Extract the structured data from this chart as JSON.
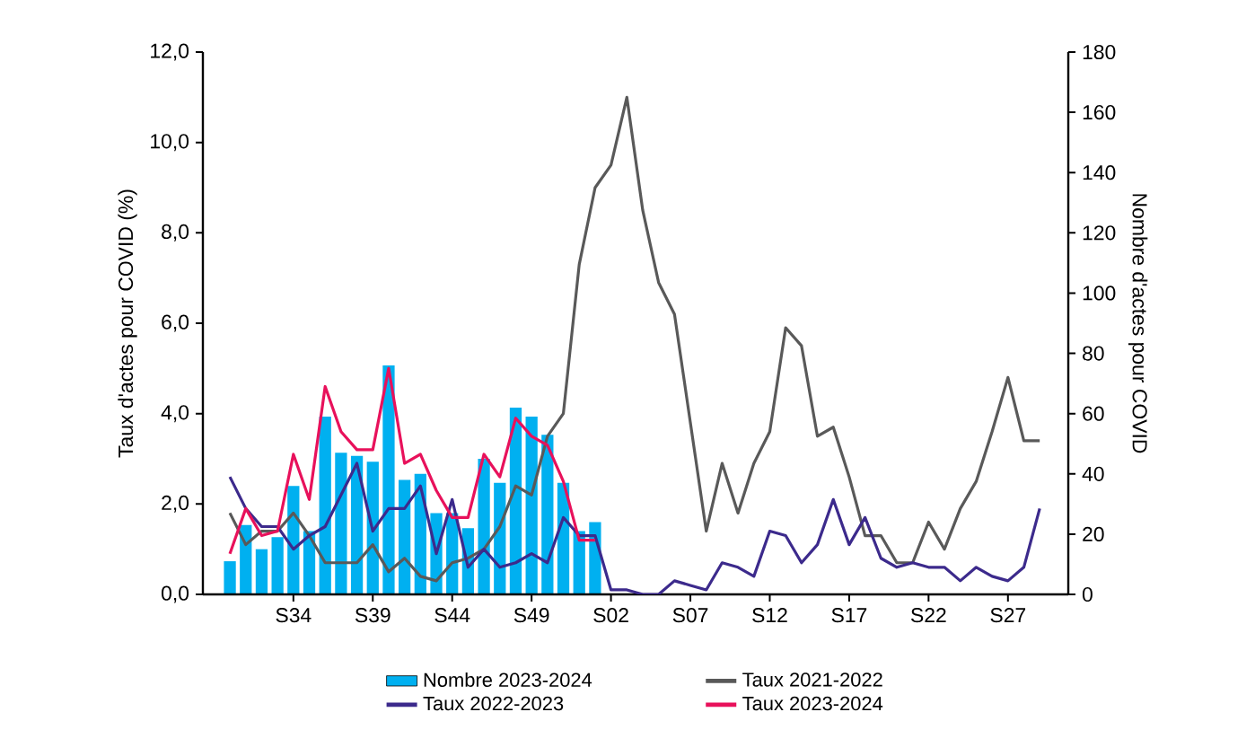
{
  "chart_data": {
    "type": "line",
    "ylabel": "Taux d'actes pour COVID (%)",
    "y2label": "Nombre d'actes pour COVID",
    "categories": [
      null,
      null,
      null,
      null,
      "S34",
      null,
      null,
      null,
      null,
      "S39",
      null,
      null,
      null,
      null,
      "S44",
      null,
      null,
      null,
      null,
      "S49",
      null,
      null,
      null,
      null,
      "S02",
      null,
      null,
      null,
      null,
      "S07",
      null,
      null,
      null,
      null,
      "S12",
      null,
      null,
      null,
      null,
      "S17",
      null,
      null,
      null,
      null,
      "S22",
      null,
      null,
      null,
      null,
      "S27",
      null,
      null
    ],
    "ylim": [
      0,
      12
    ],
    "yticks": [
      {
        "value": 0,
        "label": "0,0"
      },
      {
        "value": 2,
        "label": "2,0"
      },
      {
        "value": 4,
        "label": "4,0"
      },
      {
        "value": 6,
        "label": "6,0"
      },
      {
        "value": 8,
        "label": "8,0"
      },
      {
        "value": 10,
        "label": "10,0"
      },
      {
        "value": 12,
        "label": "12,0"
      }
    ],
    "y2lim": [
      0,
      180
    ],
    "y2ticks": [
      0,
      20,
      40,
      60,
      80,
      100,
      120,
      140,
      160,
      180
    ],
    "legend": "bottom",
    "series": [
      {
        "name": "Nombre 2023-2024",
        "type": "bar",
        "axis": "y2",
        "color": "#00b0f0",
        "values": [
          11,
          23,
          15,
          19,
          36,
          21,
          59,
          47,
          46,
          44,
          76,
          38,
          40,
          27,
          27,
          22,
          45,
          37,
          62,
          59,
          53,
          37,
          21,
          24,
          null,
          null,
          null,
          null,
          null,
          null,
          null,
          null,
          null,
          null,
          null,
          null,
          null,
          null,
          null,
          null,
          null,
          null,
          null,
          null,
          null,
          null,
          null,
          null,
          null,
          null,
          null,
          null
        ]
      },
      {
        "name": "Taux 2021-2022",
        "color": "#595959",
        "values": [
          1.8,
          1.1,
          1.4,
          1.4,
          1.8,
          1.3,
          0.7,
          0.7,
          0.7,
          1.1,
          0.5,
          0.8,
          0.4,
          0.3,
          0.7,
          0.8,
          1.0,
          1.5,
          2.4,
          2.2,
          3.5,
          4.0,
          7.3,
          9.0,
          9.5,
          11.0,
          8.5,
          6.9,
          6.2,
          3.8,
          1.4,
          2.9,
          1.8,
          2.9,
          3.6,
          5.9,
          5.5,
          3.5,
          3.7,
          2.6,
          1.3,
          1.3,
          0.7,
          0.7,
          1.6,
          1.0,
          1.9,
          2.5,
          3.6,
          4.8,
          3.4,
          3.4
        ]
      },
      {
        "name": "Taux 2022-2023",
        "color": "#3c2a8c",
        "values": [
          2.6,
          1.9,
          1.5,
          1.5,
          1.0,
          1.3,
          1.5,
          2.2,
          2.9,
          1.4,
          1.9,
          1.9,
          2.4,
          0.9,
          2.1,
          0.6,
          1.0,
          0.6,
          0.7,
          0.9,
          0.7,
          1.7,
          1.3,
          1.3,
          0.1,
          0.1,
          0.0,
          0.0,
          0.3,
          0.2,
          0.1,
          0.7,
          0.6,
          0.4,
          1.4,
          1.3,
          0.7,
          1.1,
          2.1,
          1.1,
          1.7,
          0.8,
          0.6,
          0.7,
          0.6,
          0.6,
          0.3,
          0.6,
          0.4,
          0.3,
          0.6,
          1.9
        ]
      },
      {
        "name": "Taux 2023-2024",
        "color": "#e8115b",
        "values": [
          0.9,
          1.9,
          1.3,
          1.4,
          3.1,
          2.1,
          4.6,
          3.6,
          3.2,
          3.2,
          5.0,
          2.9,
          3.1,
          2.3,
          1.7,
          1.7,
          3.1,
          2.6,
          3.9,
          3.5,
          3.3,
          2.5,
          1.2,
          1.2,
          null,
          null,
          null,
          null,
          null,
          null,
          null,
          null,
          null,
          null,
          null,
          null,
          null,
          null,
          null,
          null,
          null,
          null,
          null,
          null,
          null,
          null,
          null,
          null,
          null,
          null,
          null,
          null
        ]
      }
    ]
  }
}
